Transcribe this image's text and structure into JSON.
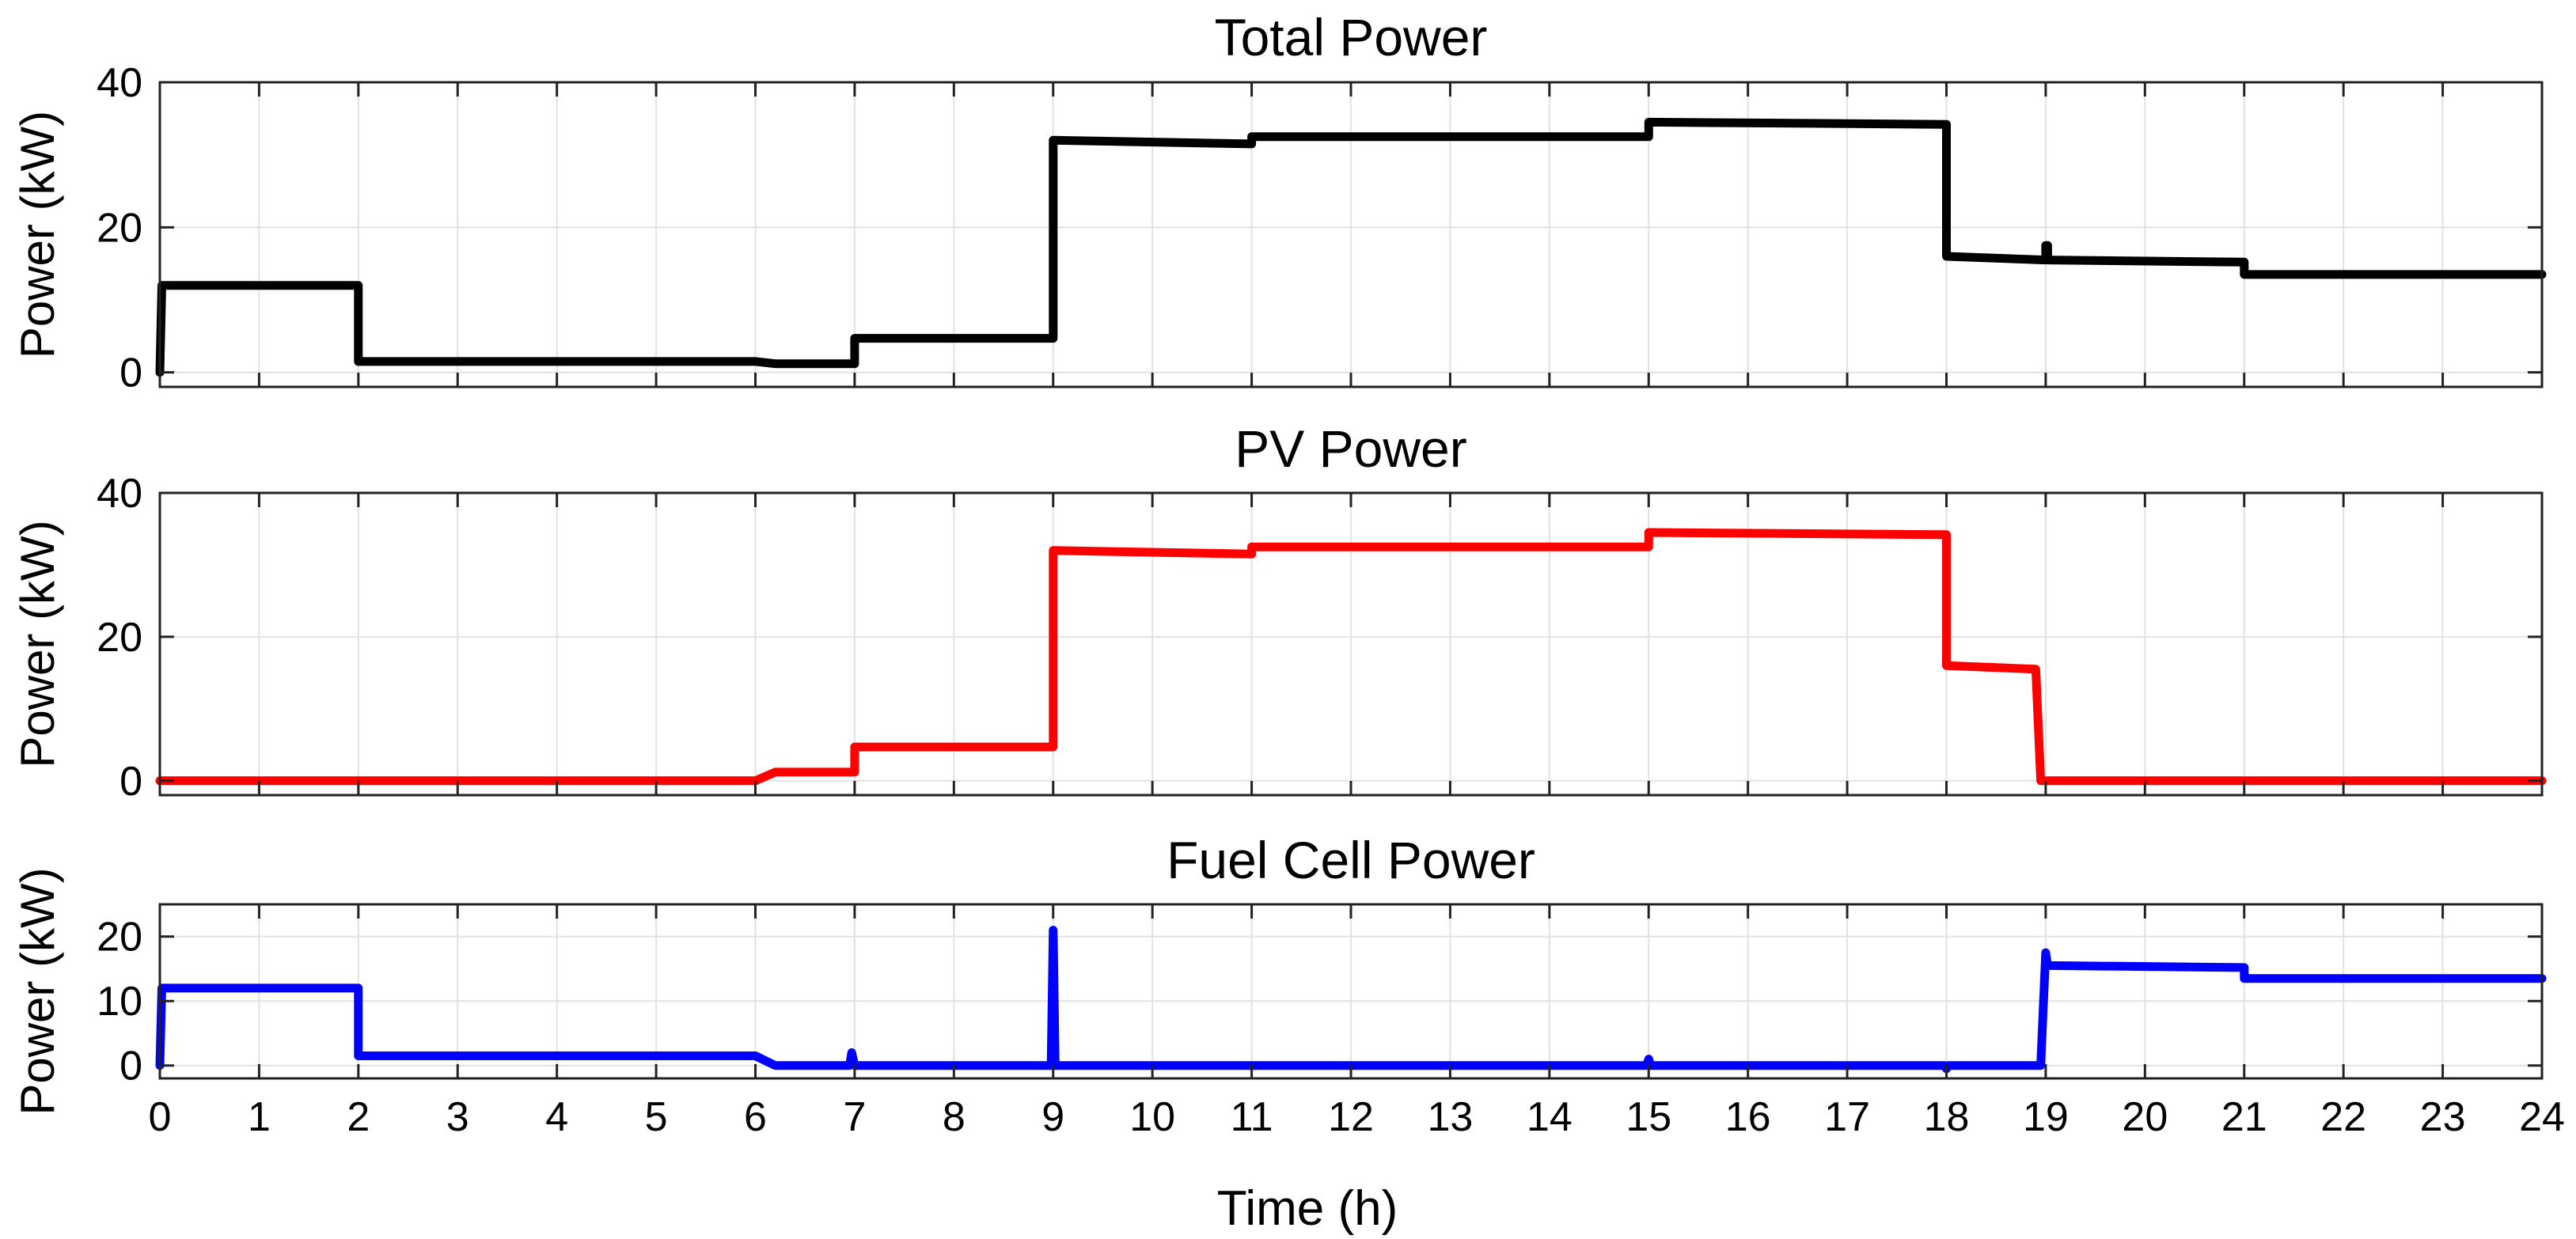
{
  "figure": {
    "xlabel": "Time (h)"
  },
  "chart_data": [
    {
      "type": "line",
      "title": "Total Power",
      "ylabel": "Power (kW)",
      "xlim": [
        0,
        24
      ],
      "ylim": [
        -2,
        40
      ],
      "yticks": [
        0,
        20,
        40
      ],
      "xticks": [
        0,
        1,
        2,
        3,
        4,
        5,
        6,
        7,
        8,
        9,
        10,
        11,
        12,
        13,
        14,
        15,
        16,
        17,
        18,
        19,
        20,
        21,
        22,
        23,
        24
      ],
      "grid": true,
      "color": "#000000",
      "series": [
        {
          "name": "Total Power",
          "x": [
            0,
            0.02,
            2.0,
            2.0,
            6.0,
            6.2,
            7.0,
            7.0,
            9.0,
            9.0,
            11.0,
            11.0,
            15.0,
            15.0,
            18.0,
            18.0,
            19.0,
            19.0,
            19.02,
            19.02,
            21.0,
            21.0,
            24.0
          ],
          "y": [
            0,
            12,
            12,
            1.5,
            1.5,
            1.2,
            1.2,
            4.7,
            4.7,
            32,
            31.5,
            32.5,
            32.5,
            34.5,
            34.2,
            16,
            15.5,
            17.5,
            17.5,
            15.5,
            15.2,
            13.5,
            13.5
          ]
        }
      ]
    },
    {
      "type": "line",
      "title": "PV Power",
      "ylabel": "Power (kW)",
      "xlim": [
        0,
        24
      ],
      "ylim": [
        -2,
        40
      ],
      "yticks": [
        0,
        20,
        40
      ],
      "xticks": [
        0,
        1,
        2,
        3,
        4,
        5,
        6,
        7,
        8,
        9,
        10,
        11,
        12,
        13,
        14,
        15,
        16,
        17,
        18,
        19,
        20,
        21,
        22,
        23,
        24
      ],
      "grid": true,
      "color": "#ff0000",
      "series": [
        {
          "name": "PV Power",
          "x": [
            0,
            6.0,
            6.2,
            7.0,
            7.0,
            9.0,
            9.0,
            11.0,
            11.0,
            15.0,
            15.0,
            18.0,
            18.0,
            18.9,
            18.95,
            19.0,
            24.0
          ],
          "y": [
            0,
            0,
            1.2,
            1.2,
            4.7,
            4.7,
            32,
            31.5,
            32.5,
            32.5,
            34.5,
            34.2,
            16,
            15.5,
            0,
            0,
            0
          ]
        }
      ]
    },
    {
      "type": "line",
      "title": "Fuel Cell Power",
      "ylabel": "Power (kW)",
      "xlim": [
        0,
        24
      ],
      "ylim": [
        -2,
        25
      ],
      "yticks": [
        0,
        10,
        20
      ],
      "xticks": [
        0,
        1,
        2,
        3,
        4,
        5,
        6,
        7,
        8,
        9,
        10,
        11,
        12,
        13,
        14,
        15,
        16,
        17,
        18,
        19,
        20,
        21,
        22,
        23,
        24
      ],
      "grid": true,
      "color": "#0000ff",
      "series": [
        {
          "name": "Fuel Cell Power",
          "x": [
            0,
            0.02,
            2.0,
            2.0,
            6.0,
            6.2,
            6.95,
            6.97,
            7.0,
            7.02,
            8.98,
            9.0,
            9.02,
            9.04,
            14.98,
            15.0,
            15.02,
            17.98,
            18.0,
            18.02,
            18.95,
            19.0,
            19.02,
            19.04,
            21.0,
            21.0,
            24.0
          ],
          "y": [
            0,
            12,
            12,
            1.5,
            1.5,
            0,
            0,
            2,
            0,
            0,
            0,
            21,
            0,
            0,
            0,
            1,
            0,
            0,
            -0.5,
            0,
            0,
            17.5,
            15.5,
            15.5,
            15.2,
            13.5,
            13.5
          ]
        }
      ]
    }
  ]
}
